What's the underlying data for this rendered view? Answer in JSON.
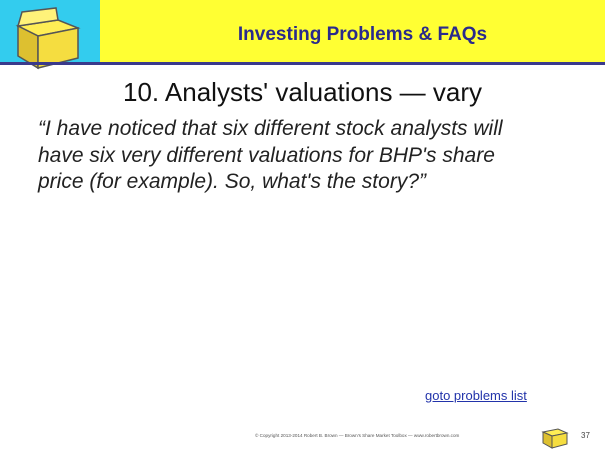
{
  "header": {
    "title": "Investing Problems & FAQs"
  },
  "heading": "10. Analysts' valuations — vary",
  "quote": [
    "“I have noticed that six different stock analysts will",
    "have six very different valuations for BHP's share",
    "price (for example). So, what's the story?”"
  ],
  "link": "goto problems list",
  "footer": {
    "copyright": "© Copyright 2013-2014 Robert B. Brown — Brown's Share Market Toolbox — www.robertbrown.com",
    "page_number": "37"
  }
}
